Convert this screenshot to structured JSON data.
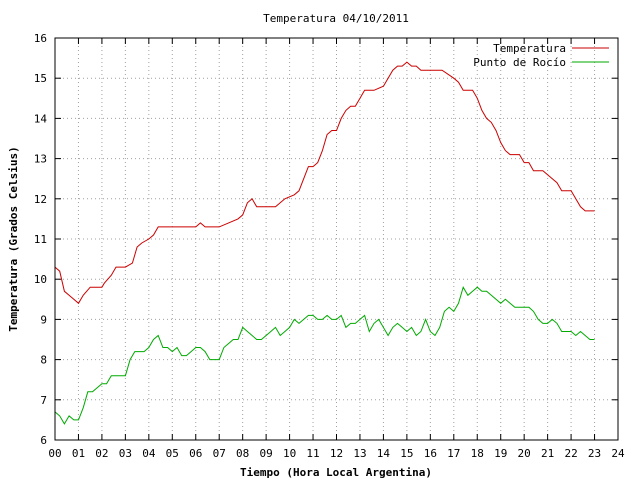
{
  "chart_data": {
    "type": "line",
    "title": "Temperatura 04/10/2011",
    "xlabel": "Tiempo (Hora Local Argentina)",
    "ylabel": "Temperatura (Grados Celsius)",
    "xlim": [
      0,
      24
    ],
    "ylim": [
      6,
      16
    ],
    "x_ticks": [
      "00",
      "01",
      "02",
      "03",
      "04",
      "05",
      "06",
      "07",
      "08",
      "09",
      "10",
      "11",
      "12",
      "13",
      "14",
      "15",
      "16",
      "17",
      "18",
      "19",
      "20",
      "21",
      "22",
      "23",
      "24"
    ],
    "y_ticks": [
      "6",
      "7",
      "8",
      "9",
      "10",
      "11",
      "12",
      "13",
      "14",
      "15",
      "16"
    ],
    "grid": true,
    "legend_position": "top-right",
    "series": [
      {
        "name": "Temperatura",
        "color": "#cc0000",
        "x": [
          0.0,
          0.2,
          0.4,
          0.6,
          0.8,
          1.0,
          1.2,
          1.5,
          1.8,
          2.0,
          2.1,
          2.4,
          2.6,
          3.0,
          3.3,
          3.5,
          3.7,
          4.0,
          4.2,
          4.4,
          4.6,
          5.0,
          5.5,
          6.0,
          6.2,
          6.4,
          6.6,
          7.0,
          7.4,
          7.8,
          8.0,
          8.2,
          8.4,
          8.6,
          9.0,
          9.4,
          9.8,
          10.2,
          10.4,
          10.6,
          10.8,
          11.0,
          11.2,
          11.4,
          11.6,
          11.8,
          12.0,
          12.2,
          12.4,
          12.6,
          12.8,
          13.0,
          13.2,
          13.4,
          13.6,
          14.0,
          14.2,
          14.4,
          14.6,
          14.8,
          15.0,
          15.2,
          15.4,
          15.6,
          15.8,
          16.0,
          16.5,
          17.0,
          17.2,
          17.4,
          17.6,
          17.8,
          18.0,
          18.2,
          18.4,
          18.6,
          18.8,
          19.0,
          19.2,
          19.4,
          19.6,
          19.8,
          20.0,
          20.2,
          20.4,
          20.6,
          20.8,
          21.0,
          21.2,
          21.4,
          21.6,
          21.8,
          22.0,
          22.2,
          22.4,
          22.6,
          22.8,
          23.0
        ],
        "y": [
          10.3,
          10.2,
          9.7,
          9.6,
          9.5,
          9.4,
          9.6,
          9.8,
          9.8,
          9.8,
          9.9,
          10.1,
          10.3,
          10.3,
          10.4,
          10.8,
          10.9,
          11.0,
          11.1,
          11.3,
          11.3,
          11.3,
          11.3,
          11.3,
          11.4,
          11.3,
          11.3,
          11.3,
          11.4,
          11.5,
          11.6,
          11.9,
          12.0,
          11.8,
          11.8,
          11.8,
          12.0,
          12.1,
          12.2,
          12.5,
          12.8,
          12.8,
          12.9,
          13.2,
          13.6,
          13.7,
          13.7,
          14.0,
          14.2,
          14.3,
          14.3,
          14.5,
          14.7,
          14.7,
          14.7,
          14.8,
          15.0,
          15.2,
          15.3,
          15.3,
          15.4,
          15.3,
          15.3,
          15.2,
          15.2,
          15.2,
          15.2,
          15.0,
          14.9,
          14.7,
          14.7,
          14.7,
          14.5,
          14.2,
          14.0,
          13.9,
          13.7,
          13.4,
          13.2,
          13.1,
          13.1,
          13.1,
          12.9,
          12.9,
          12.7,
          12.7,
          12.7,
          12.6,
          12.5,
          12.4,
          12.2,
          12.2,
          12.2,
          12.0,
          11.8,
          11.7,
          11.7,
          11.7
        ]
      },
      {
        "name": "Punto de Rocío",
        "color": "#00aa00",
        "x": [
          0.0,
          0.2,
          0.4,
          0.6,
          0.8,
          1.0,
          1.2,
          1.4,
          1.6,
          1.8,
          2.0,
          2.2,
          2.4,
          2.6,
          3.0,
          3.2,
          3.4,
          3.6,
          3.8,
          4.0,
          4.2,
          4.4,
          4.6,
          4.8,
          5.0,
          5.2,
          5.4,
          5.6,
          5.8,
          6.0,
          6.2,
          6.4,
          6.6,
          6.8,
          7.0,
          7.2,
          7.4,
          7.6,
          7.8,
          8.0,
          8.2,
          8.4,
          8.6,
          8.8,
          9.0,
          9.2,
          9.4,
          9.6,
          9.8,
          10.0,
          10.2,
          10.4,
          10.6,
          10.8,
          11.0,
          11.2,
          11.4,
          11.6,
          11.8,
          12.0,
          12.2,
          12.4,
          12.6,
          12.8,
          13.0,
          13.2,
          13.4,
          13.6,
          13.8,
          14.0,
          14.2,
          14.4,
          14.6,
          14.8,
          15.0,
          15.2,
          15.4,
          15.6,
          15.8,
          16.0,
          16.2,
          16.4,
          16.6,
          16.8,
          17.0,
          17.2,
          17.4,
          17.6,
          17.8,
          18.0,
          18.2,
          18.4,
          18.6,
          18.8,
          19.0,
          19.2,
          19.4,
          19.6,
          19.8,
          20.0,
          20.2,
          20.4,
          20.6,
          20.8,
          21.0,
          21.2,
          21.4,
          21.6,
          21.8,
          22.0,
          22.2,
          22.4,
          22.6,
          22.8,
          23.0
        ],
        "y": [
          6.7,
          6.6,
          6.4,
          6.6,
          6.5,
          6.5,
          6.8,
          7.2,
          7.2,
          7.3,
          7.4,
          7.4,
          7.6,
          7.6,
          7.6,
          8.0,
          8.2,
          8.2,
          8.2,
          8.3,
          8.5,
          8.6,
          8.3,
          8.3,
          8.2,
          8.3,
          8.1,
          8.1,
          8.2,
          8.3,
          8.3,
          8.2,
          8.0,
          8.0,
          8.0,
          8.3,
          8.4,
          8.5,
          8.5,
          8.8,
          8.7,
          8.6,
          8.5,
          8.5,
          8.6,
          8.7,
          8.8,
          8.6,
          8.7,
          8.8,
          9.0,
          8.9,
          9.0,
          9.1,
          9.1,
          9.0,
          9.0,
          9.1,
          9.0,
          9.0,
          9.1,
          8.8,
          8.9,
          8.9,
          9.0,
          9.1,
          8.7,
          8.9,
          9.0,
          8.8,
          8.6,
          8.8,
          8.9,
          8.8,
          8.7,
          8.8,
          8.6,
          8.7,
          9.0,
          8.7,
          8.6,
          8.8,
          9.2,
          9.3,
          9.2,
          9.4,
          9.8,
          9.6,
          9.7,
          9.8,
          9.7,
          9.7,
          9.6,
          9.5,
          9.4,
          9.5,
          9.4,
          9.3,
          9.3,
          9.3,
          9.3,
          9.2,
          9.0,
          8.9,
          8.9,
          9.0,
          8.9,
          8.7,
          8.7,
          8.7,
          8.6,
          8.7,
          8.6,
          8.5,
          8.5
        ]
      }
    ]
  }
}
